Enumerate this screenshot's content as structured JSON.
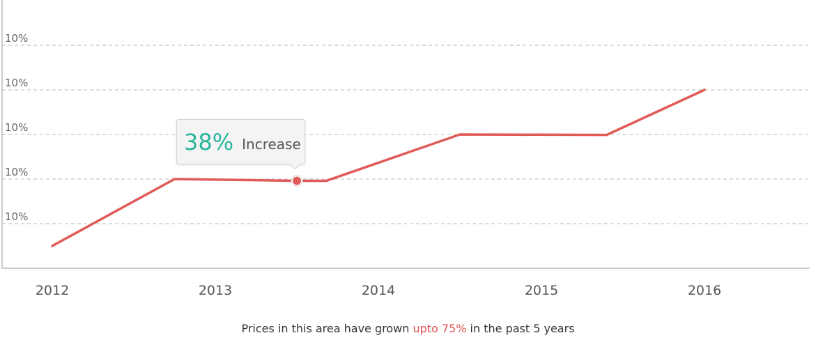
{
  "chart_data": {
    "type": "line",
    "x": [
      2012,
      2012.75,
      2013.5,
      2013.68,
      2014.5,
      2015.4,
      2016
    ],
    "series": [
      {
        "values": [
          0.5,
          2,
          1.96,
          1.96,
          3,
          2.99,
          4
        ]
      }
    ],
    "xticks": [
      "2012",
      "2013",
      "2014",
      "2015",
      "2016"
    ],
    "yticks": [
      "10%",
      "10%",
      "10%",
      "10%",
      "10%"
    ],
    "ylim": [
      0,
      5
    ],
    "grid": "horizontal dashed",
    "line_color": "#e05a57",
    "highlight": {
      "x": 2013.5,
      "y": 1.96,
      "value": "38%",
      "label": "Increase"
    }
  },
  "tooltip": {
    "value": "38%",
    "label": "Increase"
  },
  "caption": {
    "prefix": "Prices in this area have grown ",
    "highlight": "upto 75%",
    "suffix": " in the past 5 years"
  },
  "colors": {
    "accent": "#e05a57",
    "tooltip_value": "#26b59a",
    "grid": "#c8c8c8",
    "axis": "#cccccc"
  }
}
